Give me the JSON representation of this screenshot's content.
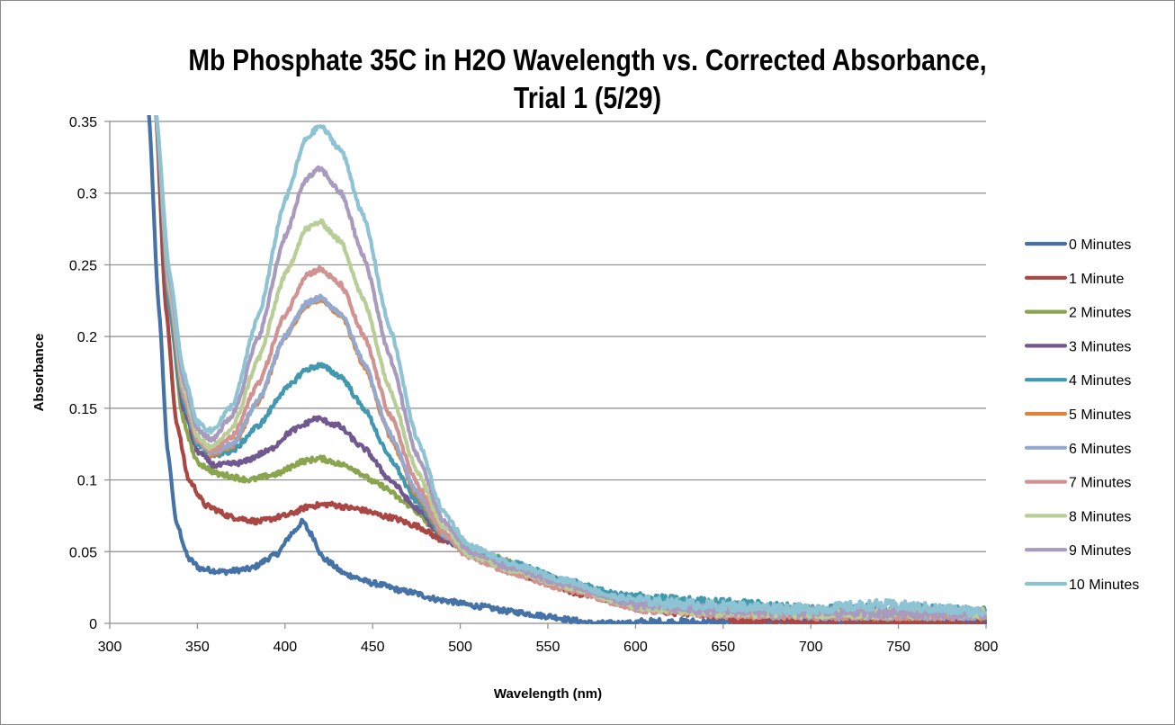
{
  "chart_data": {
    "type": "line",
    "title": "Mb Phosphate 35C in H2O Wavelength vs. Corrected Absorbance, Trial 1 (5/29)",
    "title_lines": [
      "Mb Phosphate 35C in H2O Wavelength vs. Corrected Absorbance,",
      "Trial 1 (5/29)"
    ],
    "xlabel": "Wavelength (nm)",
    "ylabel": "Absorbance",
    "xlim": [
      300,
      800
    ],
    "ylim": [
      0,
      0.35
    ],
    "x_ticks": [
      300,
      350,
      400,
      450,
      500,
      550,
      600,
      650,
      700,
      750,
      800
    ],
    "x_tick_labels": [
      "300",
      "350",
      "400",
      "450",
      "500",
      "550",
      "600",
      "650",
      "700",
      "750",
      "800"
    ],
    "y_ticks": [
      0,
      0.05,
      0.1,
      0.15,
      0.2,
      0.25,
      0.3,
      0.35
    ],
    "y_tick_labels": [
      "0",
      "0.05",
      "0.1",
      "0.15",
      "0.2",
      "0.25",
      "0.3",
      "0.35"
    ],
    "grid": "horizontal",
    "legend_position": "right",
    "series": [
      {
        "name": "0 Minutes",
        "color": "#4572a7",
        "points": [
          [
            322,
            0.36
          ],
          [
            328,
            0.22
          ],
          [
            333,
            0.12
          ],
          [
            338,
            0.07
          ],
          [
            345,
            0.045
          ],
          [
            352,
            0.038
          ],
          [
            365,
            0.036
          ],
          [
            380,
            0.038
          ],
          [
            395,
            0.048
          ],
          [
            405,
            0.064
          ],
          [
            410,
            0.071
          ],
          [
            415,
            0.062
          ],
          [
            422,
            0.045
          ],
          [
            435,
            0.034
          ],
          [
            450,
            0.028
          ],
          [
            470,
            0.022
          ],
          [
            490,
            0.016
          ],
          [
            510,
            0.012
          ],
          [
            530,
            0.008
          ],
          [
            550,
            0.005
          ],
          [
            565,
            0.002
          ],
          [
            575,
            0.0
          ],
          [
            800,
            0.0
          ]
        ]
      },
      {
        "name": "1 Minute",
        "color": "#aa4643",
        "points": [
          [
            326,
            0.36
          ],
          [
            332,
            0.22
          ],
          [
            338,
            0.14
          ],
          [
            345,
            0.1
          ],
          [
            355,
            0.082
          ],
          [
            370,
            0.074
          ],
          [
            385,
            0.071
          ],
          [
            400,
            0.075
          ],
          [
            415,
            0.082
          ],
          [
            425,
            0.083
          ],
          [
            440,
            0.08
          ],
          [
            460,
            0.074
          ],
          [
            475,
            0.068
          ],
          [
            490,
            0.058
          ],
          [
            510,
            0.046
          ],
          [
            530,
            0.036
          ],
          [
            550,
            0.028
          ],
          [
            570,
            0.02
          ],
          [
            600,
            0.012
          ],
          [
            630,
            0.008
          ],
          [
            650,
            0.006
          ],
          [
            660,
            0.002
          ],
          [
            700,
            0.001
          ],
          [
            800,
            0.0
          ]
        ]
      },
      {
        "name": "2 Minutes",
        "color": "#89a54e",
        "points": [
          [
            326,
            0.36
          ],
          [
            334,
            0.22
          ],
          [
            342,
            0.14
          ],
          [
            350,
            0.112
          ],
          [
            362,
            0.104
          ],
          [
            380,
            0.1
          ],
          [
            395,
            0.104
          ],
          [
            410,
            0.113
          ],
          [
            420,
            0.115
          ],
          [
            435,
            0.11
          ],
          [
            455,
            0.096
          ],
          [
            470,
            0.083
          ],
          [
            485,
            0.066
          ],
          [
            500,
            0.055
          ],
          [
            520,
            0.046
          ],
          [
            540,
            0.037
          ],
          [
            560,
            0.029
          ],
          [
            580,
            0.02
          ],
          [
            600,
            0.015
          ],
          [
            630,
            0.013
          ],
          [
            660,
            0.01
          ],
          [
            700,
            0.007
          ],
          [
            750,
            0.006
          ],
          [
            800,
            0.007
          ]
        ]
      },
      {
        "name": "3 Minutes",
        "color": "#71588f",
        "points": [
          [
            326,
            0.36
          ],
          [
            334,
            0.22
          ],
          [
            342,
            0.15
          ],
          [
            350,
            0.12
          ],
          [
            360,
            0.11
          ],
          [
            375,
            0.112
          ],
          [
            390,
            0.12
          ],
          [
            405,
            0.135
          ],
          [
            418,
            0.143
          ],
          [
            430,
            0.138
          ],
          [
            445,
            0.122
          ],
          [
            460,
            0.1
          ],
          [
            475,
            0.08
          ],
          [
            490,
            0.06
          ],
          [
            505,
            0.05
          ],
          [
            530,
            0.04
          ],
          [
            560,
            0.029
          ],
          [
            600,
            0.015
          ],
          [
            650,
            0.009
          ],
          [
            700,
            0.005
          ],
          [
            750,
            0.006
          ],
          [
            800,
            0.004
          ]
        ]
      },
      {
        "name": "4 Minutes",
        "color": "#4198af",
        "points": [
          [
            326,
            0.36
          ],
          [
            334,
            0.22
          ],
          [
            342,
            0.155
          ],
          [
            350,
            0.125
          ],
          [
            358,
            0.117
          ],
          [
            370,
            0.12
          ],
          [
            385,
            0.138
          ],
          [
            400,
            0.163
          ],
          [
            412,
            0.177
          ],
          [
            420,
            0.18
          ],
          [
            432,
            0.172
          ],
          [
            445,
            0.15
          ],
          [
            460,
            0.115
          ],
          [
            475,
            0.085
          ],
          [
            490,
            0.062
          ],
          [
            505,
            0.05
          ],
          [
            530,
            0.042
          ],
          [
            560,
            0.03
          ],
          [
            590,
            0.02
          ],
          [
            620,
            0.016
          ],
          [
            650,
            0.014
          ],
          [
            700,
            0.01
          ],
          [
            750,
            0.01
          ],
          [
            800,
            0.008
          ]
        ]
      },
      {
        "name": "5 Minutes",
        "color": "#db843d",
        "points": [
          [
            326,
            0.36
          ],
          [
            334,
            0.23
          ],
          [
            342,
            0.16
          ],
          [
            350,
            0.127
          ],
          [
            358,
            0.118
          ],
          [
            370,
            0.124
          ],
          [
            385,
            0.155
          ],
          [
            400,
            0.2
          ],
          [
            412,
            0.222
          ],
          [
            420,
            0.226
          ],
          [
            432,
            0.215
          ],
          [
            445,
            0.18
          ],
          [
            460,
            0.13
          ],
          [
            475,
            0.09
          ],
          [
            490,
            0.062
          ],
          [
            505,
            0.048
          ],
          [
            530,
            0.038
          ],
          [
            560,
            0.026
          ],
          [
            600,
            0.012
          ],
          [
            650,
            0.008
          ],
          [
            700,
            0.006
          ],
          [
            800,
            0.006
          ]
        ]
      },
      {
        "name": "6 Minutes",
        "color": "#93a9cf",
        "points": [
          [
            326,
            0.36
          ],
          [
            334,
            0.23
          ],
          [
            342,
            0.16
          ],
          [
            350,
            0.128
          ],
          [
            358,
            0.119
          ],
          [
            370,
            0.125
          ],
          [
            385,
            0.156
          ],
          [
            400,
            0.2
          ],
          [
            412,
            0.223
          ],
          [
            420,
            0.227
          ],
          [
            432,
            0.216
          ],
          [
            445,
            0.182
          ],
          [
            460,
            0.132
          ],
          [
            475,
            0.092
          ],
          [
            490,
            0.063
          ],
          [
            505,
            0.048
          ],
          [
            530,
            0.038
          ],
          [
            560,
            0.026
          ],
          [
            600,
            0.012
          ],
          [
            650,
            0.008
          ],
          [
            700,
            0.006
          ],
          [
            800,
            0.006
          ]
        ]
      },
      {
        "name": "7 Minutes",
        "color": "#d19392",
        "points": [
          [
            326,
            0.36
          ],
          [
            334,
            0.23
          ],
          [
            342,
            0.16
          ],
          [
            350,
            0.128
          ],
          [
            358,
            0.12
          ],
          [
            370,
            0.13
          ],
          [
            385,
            0.168
          ],
          [
            400,
            0.215
          ],
          [
            412,
            0.243
          ],
          [
            420,
            0.247
          ],
          [
            432,
            0.236
          ],
          [
            445,
            0.2
          ],
          [
            460,
            0.145
          ],
          [
            475,
            0.098
          ],
          [
            490,
            0.064
          ],
          [
            505,
            0.046
          ],
          [
            530,
            0.035
          ],
          [
            560,
            0.024
          ],
          [
            600,
            0.011
          ],
          [
            650,
            0.007
          ],
          [
            700,
            0.006
          ],
          [
            800,
            0.006
          ]
        ]
      },
      {
        "name": "8 Minutes",
        "color": "#b9cd96",
        "points": [
          [
            326,
            0.36
          ],
          [
            334,
            0.235
          ],
          [
            342,
            0.165
          ],
          [
            350,
            0.13
          ],
          [
            358,
            0.122
          ],
          [
            370,
            0.136
          ],
          [
            385,
            0.185
          ],
          [
            400,
            0.243
          ],
          [
            412,
            0.275
          ],
          [
            420,
            0.28
          ],
          [
            432,
            0.266
          ],
          [
            445,
            0.225
          ],
          [
            460,
            0.163
          ],
          [
            475,
            0.107
          ],
          [
            490,
            0.068
          ],
          [
            505,
            0.048
          ],
          [
            530,
            0.037
          ],
          [
            560,
            0.026
          ],
          [
            600,
            0.012
          ],
          [
            650,
            0.008
          ],
          [
            700,
            0.007
          ],
          [
            800,
            0.007
          ]
        ]
      },
      {
        "name": "9 Minutes",
        "color": "#a99bbd",
        "points": [
          [
            326,
            0.36
          ],
          [
            334,
            0.24
          ],
          [
            342,
            0.17
          ],
          [
            350,
            0.135
          ],
          [
            358,
            0.128
          ],
          [
            370,
            0.145
          ],
          [
            385,
            0.2
          ],
          [
            400,
            0.27
          ],
          [
            412,
            0.31
          ],
          [
            420,
            0.317
          ],
          [
            432,
            0.3
          ],
          [
            445,
            0.255
          ],
          [
            460,
            0.185
          ],
          [
            475,
            0.118
          ],
          [
            490,
            0.072
          ],
          [
            505,
            0.05
          ],
          [
            530,
            0.038
          ],
          [
            560,
            0.027
          ],
          [
            600,
            0.013
          ],
          [
            650,
            0.009
          ],
          [
            700,
            0.008
          ],
          [
            800,
            0.007
          ]
        ]
      },
      {
        "name": "10 Minutes",
        "color": "#8ec3d4",
        "points": [
          [
            326,
            0.36
          ],
          [
            334,
            0.245
          ],
          [
            342,
            0.175
          ],
          [
            350,
            0.14
          ],
          [
            358,
            0.134
          ],
          [
            370,
            0.152
          ],
          [
            385,
            0.215
          ],
          [
            400,
            0.295
          ],
          [
            412,
            0.338
          ],
          [
            420,
            0.347
          ],
          [
            432,
            0.33
          ],
          [
            445,
            0.283
          ],
          [
            460,
            0.205
          ],
          [
            475,
            0.13
          ],
          [
            490,
            0.078
          ],
          [
            505,
            0.054
          ],
          [
            530,
            0.041
          ],
          [
            560,
            0.03
          ],
          [
            590,
            0.018
          ],
          [
            620,
            0.014
          ],
          [
            650,
            0.012
          ],
          [
            700,
            0.01
          ],
          [
            740,
            0.013
          ],
          [
            800,
            0.008
          ]
        ]
      }
    ]
  }
}
